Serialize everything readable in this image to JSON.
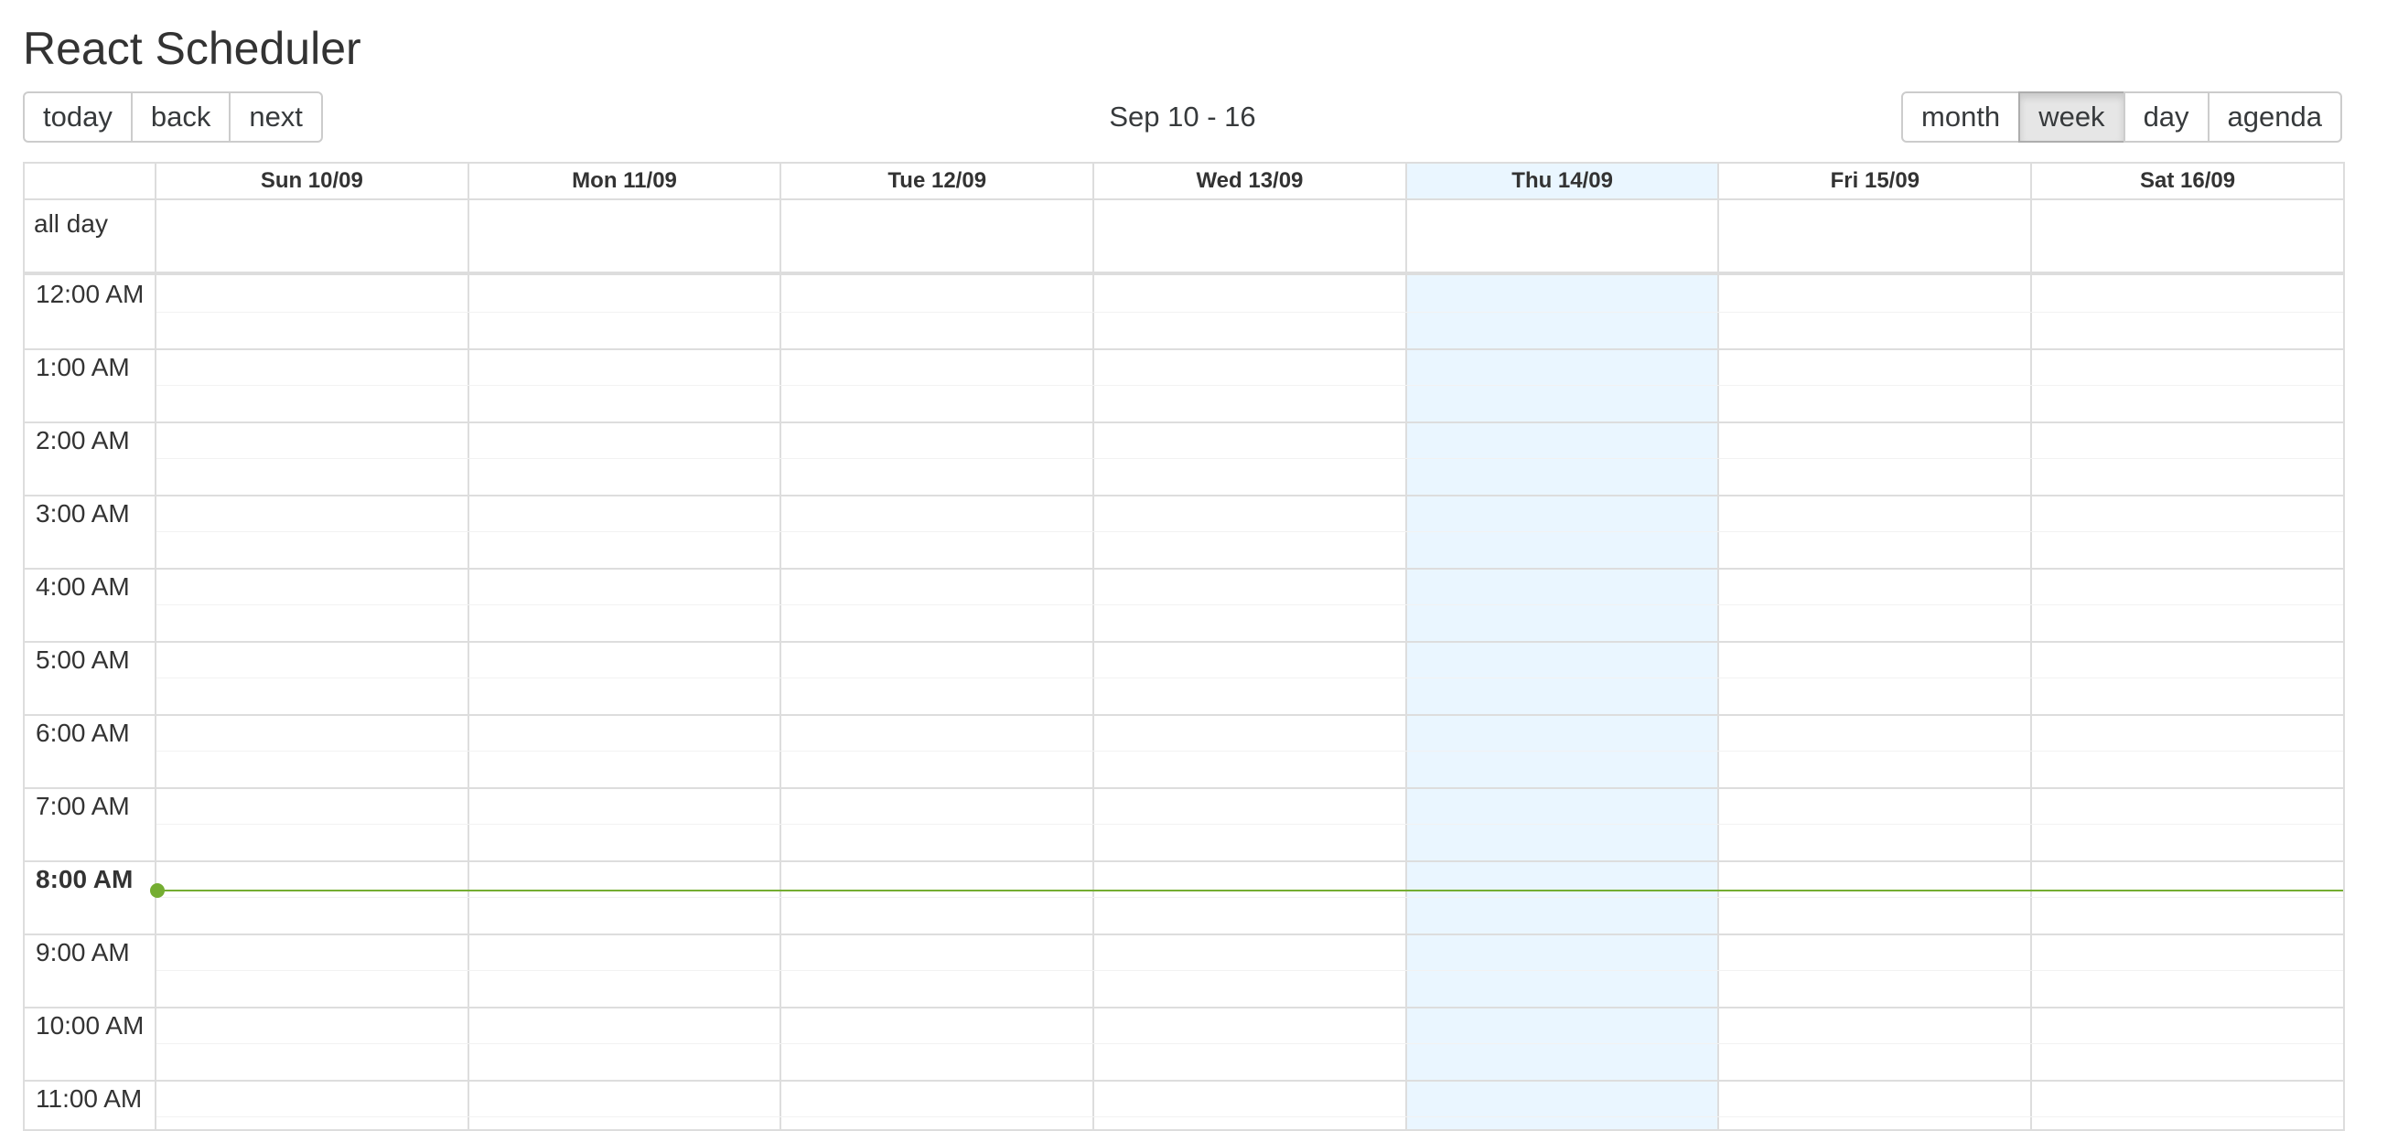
{
  "page": {
    "title": "React Scheduler"
  },
  "toolbar": {
    "nav": [
      "today",
      "back",
      "next"
    ],
    "label": "Sep 10 - 16",
    "views": [
      "month",
      "week",
      "day",
      "agenda"
    ],
    "active_view": "week"
  },
  "calendar": {
    "all_day_label": "all day",
    "days": [
      "Sun 10/09",
      "Mon 11/09",
      "Tue 12/09",
      "Wed 13/09",
      "Thu 14/09",
      "Fri 15/09",
      "Sat 16/09"
    ],
    "today_index": 4,
    "hours": [
      "12:00 AM",
      "1:00 AM",
      "2:00 AM",
      "3:00 AM",
      "4:00 AM",
      "5:00 AM",
      "6:00 AM",
      "7:00 AM",
      "8:00 AM",
      "9:00 AM",
      "10:00 AM",
      "11:00 AM"
    ],
    "current_hour_index": 8,
    "current_time_fraction_of_hour": 0.4
  },
  "colors": {
    "today_bg": "#eaf6ff",
    "now_indicator": "#74ad31",
    "grid_border": "#dddddd",
    "active_button_bg": "#e6e6e6"
  }
}
